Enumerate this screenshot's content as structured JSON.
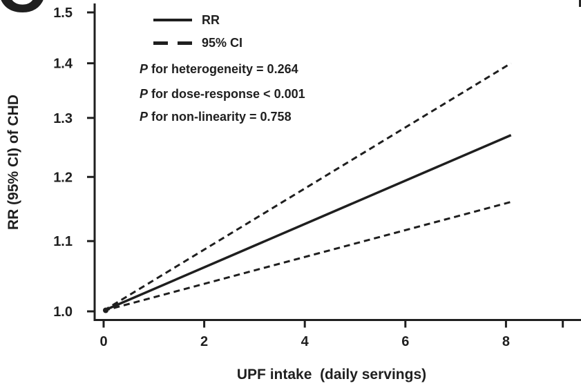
{
  "panel_label": "C",
  "colors": {
    "ink": "#1f1f1f",
    "background": "#ffffff"
  },
  "legend": {
    "items": [
      {
        "label": "RR",
        "line_style": "solid"
      },
      {
        "label": "95% CI",
        "line_style": "dashed"
      }
    ]
  },
  "annotations": {
    "items": [
      {
        "p": "P",
        "rest": " for heterogeneity = 0.264"
      },
      {
        "p": "P",
        "rest": " for dose-response < 0.001"
      },
      {
        "p": "P",
        "rest": " for non-linearity = 0.758"
      }
    ]
  },
  "chart_data": {
    "type": "line",
    "title": "",
    "xlabel": "UPF intake  (daily servings)",
    "ylabel": "RR (95% CI) of CHD",
    "x_ticks": [
      0,
      2,
      4,
      6,
      8
    ],
    "unlabeled_x_tick": 9.13,
    "xlim": [
      0,
      9.5
    ],
    "y_ticks": [
      1.0,
      1.1,
      1.2,
      1.3,
      1.4,
      1.5
    ],
    "y_scale": "log",
    "ylim": [
      1.0,
      1.52
    ],
    "grid": false,
    "legend_position": "top-left-inside",
    "series": [
      {
        "name": "RR",
        "style": "solid",
        "x": [
          0,
          8.1
        ],
        "y": [
          1.0,
          1.27
        ]
      },
      {
        "name": "CI upper",
        "style": "dashed",
        "x": [
          0,
          8.1
        ],
        "y": [
          1.0,
          1.4
        ]
      },
      {
        "name": "CI lower",
        "style": "dashed",
        "x": [
          0,
          8.1
        ],
        "y": [
          1.0,
          1.16
        ]
      }
    ],
    "reference_point": {
      "x": 0,
      "y": 1.0
    }
  }
}
